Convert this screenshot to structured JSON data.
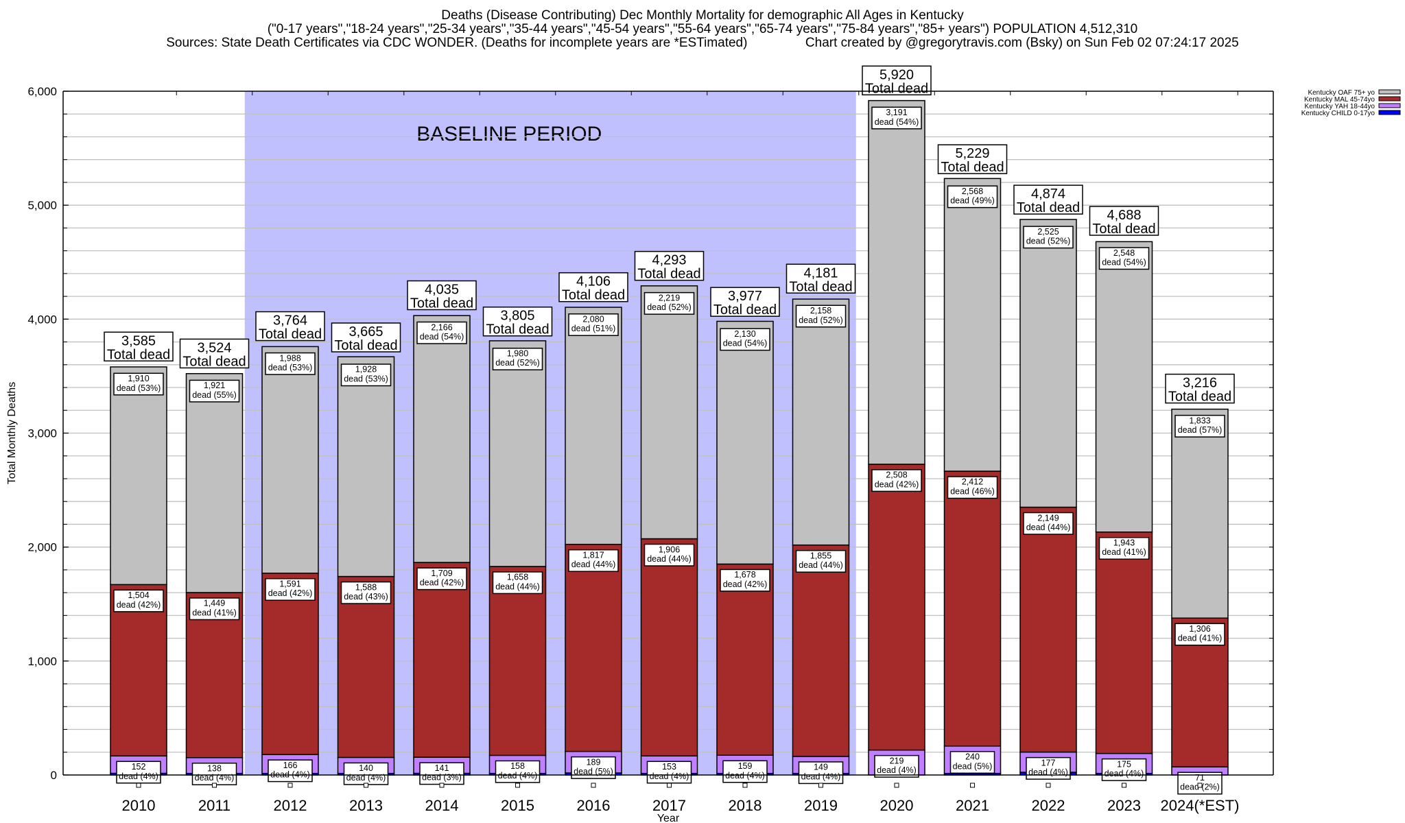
{
  "chart_data": {
    "type": "bar",
    "stacked": true,
    "title": "Deaths (Disease Contributing) Dec Monthly Mortality for demographic All Ages in Kentucky",
    "subtitle": "(\"0-17 years\",\"18-24 years\",\"25-34 years\",\"35-44 years\",\"45-54 years\",\"55-64 years\",\"65-74 years\",\"75-84 years\",\"85+ years\") POPULATION 4,512,310",
    "source_line": "Sources: State Death Certificates via CDC WONDER. (Deaths for incomplete years are *ESTimated)                Chart created by @gregorytravis.com (Bsky) on Sun Feb 02 07:24:17 2025",
    "xlabel": "Year",
    "ylabel": "Total Monthly Deaths",
    "ylim": [
      0,
      6000
    ],
    "yticks": [
      0,
      1000,
      2000,
      3000,
      4000,
      5000,
      6000
    ],
    "ytick_labels": [
      "0",
      "1,000",
      "2,000",
      "3,000",
      "4,000",
      "5,000",
      "6,000"
    ],
    "minor_grid_step": 200,
    "grid": true,
    "legend_position": "top-right",
    "categories": [
      "2010",
      "2011",
      "2012",
      "2013",
      "2014",
      "2015",
      "2016",
      "2017",
      "2018",
      "2019",
      "2020",
      "2021",
      "2022",
      "2023",
      "2024(*EST)"
    ],
    "series": [
      {
        "name": "Kentucky CHILD 0-17yo",
        "color": "#0000ff",
        "values": [
          15,
          14,
          14,
          14,
          15,
          14,
          18,
          14,
          14,
          14,
          0,
          14,
          24,
          14,
          0
        ]
      },
      {
        "name": "Kentucky YAH 18-44yo",
        "color": "#c080ff",
        "values": [
          152,
          138,
          166,
          140,
          141,
          158,
          189,
          153,
          159,
          149,
          219,
          240,
          177,
          175,
          71
        ],
        "labels": [
          "152\ndead (4%)",
          "138\ndead (4%)",
          "166\ndead (4%)",
          "140\ndead (4%)",
          "141\ndead (3%)",
          "158\ndead (4%)",
          "189\ndead (5%)",
          "153\ndead (4%)",
          "159\ndead (4%)",
          "149\ndead (4%)",
          "219\ndead (4%)",
          "240\ndead (5%)",
          "177\ndead (4%)",
          "175\ndead (4%)",
          "71\ndead (2%)"
        ]
      },
      {
        "name": "Kentucky MAL 45-74yo",
        "color": "#a52a2a",
        "values": [
          1504,
          1449,
          1591,
          1588,
          1709,
          1658,
          1817,
          1906,
          1678,
          1855,
          2508,
          2412,
          2149,
          1943,
          1306
        ],
        "labels": [
          "1,504\ndead (42%)",
          "1,449\ndead (41%)",
          "1,591\ndead (42%)",
          "1,588\ndead (43%)",
          "1,709\ndead (42%)",
          "1,658\ndead (44%)",
          "1,817\ndead (44%)",
          "1,906\ndead (44%)",
          "1,678\ndead (42%)",
          "1,855\ndead (44%)",
          "2,508\ndead (42%)",
          "2,412\ndead (46%)",
          "2,149\ndead (44%)",
          "1,943\ndead (41%)",
          "1,306\ndead (41%)"
        ]
      },
      {
        "name": "Kentucky OAF 75+ yo",
        "color": "#c0c0c0",
        "values": [
          1910,
          1921,
          1988,
          1928,
          2166,
          1980,
          2080,
          2219,
          2130,
          2158,
          3191,
          2568,
          2525,
          2548,
          1833
        ],
        "labels": [
          "1,910\ndead (53%)",
          "1,921\ndead (55%)",
          "1,988\ndead (53%)",
          "1,928\ndead (53%)",
          "2,166\ndead (54%)",
          "1,980\ndead (52%)",
          "2,080\ndead (51%)",
          "2,219\ndead (52%)",
          "2,130\ndead (54%)",
          "2,158\ndead (52%)",
          "3,191\ndead (54%)",
          "2,568\ndead (49%)",
          "2,525\ndead (52%)",
          "2,548\ndead (54%)",
          "1,833\ndead (57%)"
        ]
      }
    ],
    "totals": [
      3585,
      3524,
      3764,
      3665,
      4035,
      3805,
      4106,
      4293,
      3977,
      4181,
      5920,
      5229,
      4874,
      4688,
      3216
    ],
    "total_labels": [
      "3,585",
      "3,524",
      "3,764",
      "3,665",
      "4,035",
      "3,805",
      "4,106",
      "4,293",
      "3,977",
      "4,181",
      "5,920",
      "5,229",
      "4,874",
      "4,688",
      "3,216"
    ],
    "total_suffix": "Total dead",
    "annotations": [
      {
        "text": "BASELINE PERIOD",
        "span_categories": [
          "2012",
          "2019"
        ],
        "color": "#c0c0ff"
      }
    ],
    "legend_order": [
      "Kentucky OAF 75+ yo",
      "Kentucky MAL 45-74yo",
      "Kentucky YAH 18-44yo",
      "Kentucky CHILD 0-17yo"
    ]
  }
}
